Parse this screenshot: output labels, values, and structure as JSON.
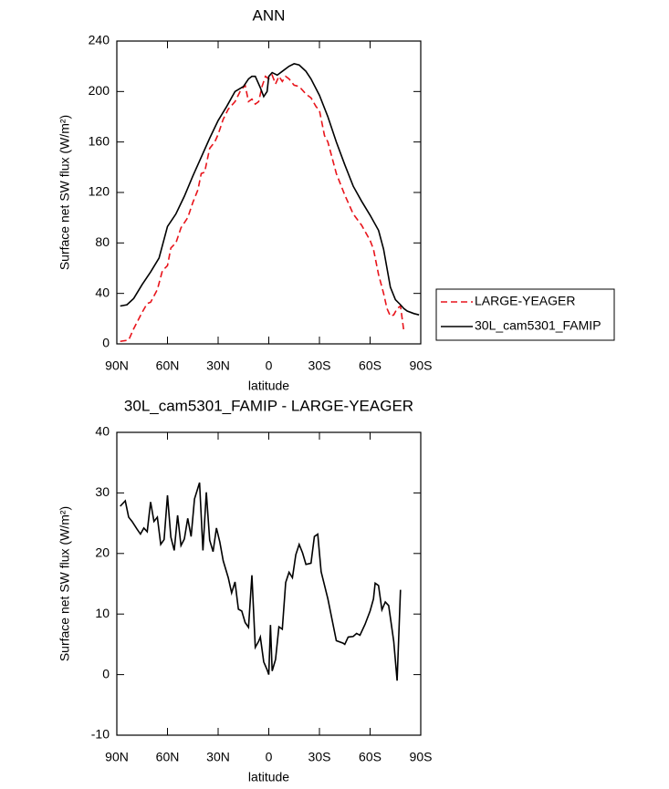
{
  "chart_data": [
    {
      "type": "line",
      "title": "ANN",
      "xlabel": "latitude",
      "ylabel": "Surface net SW flux (W/m²)",
      "xlim": [
        90,
        -90
      ],
      "ylim": [
        0,
        240
      ],
      "xticks": [
        {
          "value": 90,
          "label": "90N"
        },
        {
          "value": 60,
          "label": "60N"
        },
        {
          "value": 30,
          "label": "30N"
        },
        {
          "value": 0,
          "label": "0"
        },
        {
          "value": -30,
          "label": "30S"
        },
        {
          "value": -60,
          "label": "60S"
        },
        {
          "value": -90,
          "label": "90S"
        }
      ],
      "yticks": [
        0,
        40,
        80,
        120,
        160,
        200,
        240
      ],
      "legend": "right",
      "series": [
        {
          "name": "LARGE-YEAGER",
          "color": "#e8141b",
          "dash": true,
          "x": [
            88,
            83,
            80,
            75,
            72,
            70,
            66,
            63,
            60,
            58,
            55,
            52,
            48,
            45,
            42,
            40,
            38,
            35,
            32,
            30,
            27,
            24,
            20,
            17,
            14,
            12,
            10,
            8,
            6,
            4,
            2,
            0,
            -2,
            -4,
            -6,
            -8,
            -10,
            -12,
            -15,
            -18,
            -22,
            -25,
            -28,
            -30,
            -33,
            -35,
            -40,
            -45,
            -50,
            -55,
            -60,
            -62,
            -65,
            -68,
            -70,
            -72,
            -74,
            -76,
            -78,
            -80
          ],
          "values": [
            2,
            3,
            12,
            25,
            32,
            33,
            43,
            58,
            62,
            76,
            80,
            92,
            100,
            112,
            122,
            135,
            136,
            155,
            160,
            166,
            178,
            186,
            192,
            200,
            205,
            192,
            194,
            190,
            192,
            204,
            212,
            210,
            213,
            206,
            212,
            208,
            212,
            210,
            205,
            204,
            198,
            195,
            188,
            185,
            165,
            160,
            135,
            118,
            103,
            94,
            82,
            75,
            55,
            40,
            28,
            22,
            23,
            28,
            30,
            10
          ]
        },
        {
          "name": "30L_cam5301_FAMIP",
          "color": "#000000",
          "dash": false,
          "x": [
            88,
            84,
            80,
            75,
            70,
            65,
            60,
            55,
            50,
            45,
            40,
            35,
            30,
            25,
            20,
            15,
            12,
            10,
            8,
            5,
            3,
            1,
            0,
            -2,
            -5,
            -8,
            -12,
            -15,
            -18,
            -22,
            -25,
            -30,
            -35,
            -40,
            -45,
            -50,
            -55,
            -60,
            -65,
            -68,
            -70,
            -72,
            -75,
            -78,
            -80,
            -82,
            -86,
            -89
          ],
          "values": [
            30,
            31,
            36,
            47,
            57,
            68,
            93,
            103,
            117,
            133,
            148,
            163,
            177,
            188,
            200,
            204,
            210,
            212,
            212,
            203,
            196,
            200,
            212,
            215,
            213,
            216,
            220,
            222,
            221,
            216,
            210,
            197,
            180,
            160,
            142,
            125,
            113,
            102,
            90,
            75,
            60,
            45,
            35,
            31,
            28,
            26,
            24,
            23
          ]
        }
      ]
    },
    {
      "type": "line",
      "title": "30L_cam5301_FAMIP - LARGE-YEAGER",
      "xlabel": "latitude",
      "ylabel": "Surface net SW flux (W/m²)",
      "xlim": [
        90,
        -90
      ],
      "ylim": [
        -10,
        40
      ],
      "xticks": [
        {
          "value": 90,
          "label": "90N"
        },
        {
          "value": 60,
          "label": "60N"
        },
        {
          "value": 30,
          "label": "30N"
        },
        {
          "value": 0,
          "label": "0"
        },
        {
          "value": -30,
          "label": "30S"
        },
        {
          "value": -60,
          "label": "60S"
        },
        {
          "value": -90,
          "label": "90S"
        }
      ],
      "yticks": [
        -10,
        0,
        10,
        20,
        30,
        40
      ],
      "series": [
        {
          "color": "#000000",
          "dash": false,
          "x": [
            88,
            85,
            83,
            81,
            78,
            76,
            74,
            72,
            70,
            68,
            66,
            64,
            62,
            60,
            58,
            56,
            54,
            52,
            50,
            48,
            46,
            44,
            41,
            39,
            37,
            35,
            33,
            31,
            29,
            27,
            24,
            22,
            20,
            18,
            16,
            14,
            12,
            10,
            8,
            6,
            5,
            3,
            1,
            0,
            -1,
            -2,
            -4,
            -6,
            -8,
            -10,
            -12,
            -14,
            -16,
            -18,
            -20,
            -22,
            -25,
            -27,
            -29,
            -31,
            -35,
            -40,
            -44,
            -45,
            -47,
            -50,
            -52,
            -54,
            -57,
            -60,
            -62,
            -63,
            -65,
            -67,
            -69,
            -71,
            -74,
            -76,
            -78
          ],
          "values": [
            27.8,
            28.7,
            26,
            25.3,
            24,
            23.2,
            24.2,
            23.6,
            28.5,
            25.3,
            26,
            21.5,
            22.3,
            29.6,
            22.7,
            20.5,
            26.3,
            21.3,
            22.4,
            25.8,
            22.8,
            29,
            31.7,
            20.5,
            30.1,
            22.2,
            20.3,
            24.2,
            21.9,
            18.8,
            16,
            13.5,
            15.3,
            10.8,
            10.5,
            8.6,
            7.8,
            16.4,
            4.5,
            5.5,
            6.2,
            2.1,
            0.8,
            0,
            8.2,
            0.6,
            2.5,
            7.9,
            7.5,
            15.2,
            16.9,
            16,
            19.8,
            21.5,
            20.1,
            18.2,
            18.4,
            22.8,
            23.2,
            17,
            12.5,
            5.6,
            5.2,
            5,
            6.2,
            6.3,
            6.8,
            6.5,
            8.3,
            10.5,
            12.5,
            15.1,
            14.7,
            10.7,
            12,
            11.4,
            5.5,
            -1,
            14
          ]
        }
      ]
    }
  ]
}
